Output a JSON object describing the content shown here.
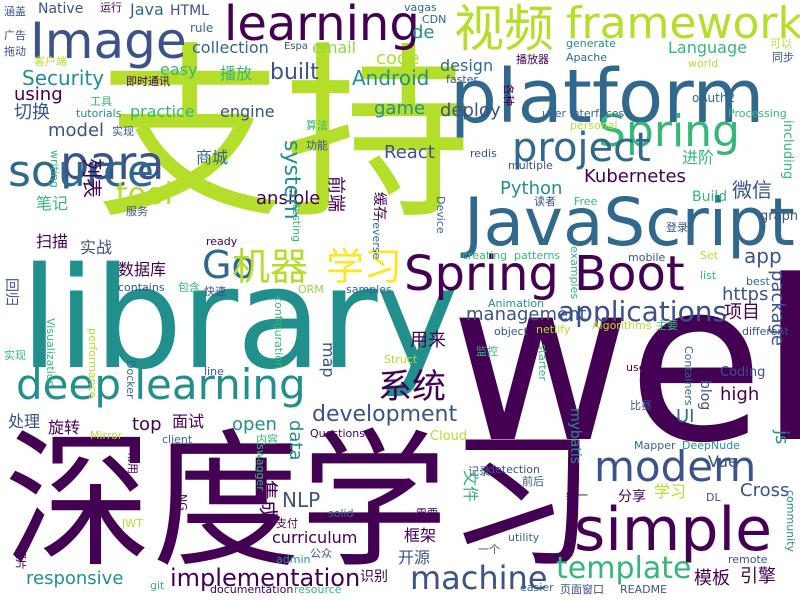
{
  "palette": {
    "deep-purple": "#440154",
    "indigo": "#3b528b",
    "blue": "#31688e",
    "teal": "#21908d",
    "green": "#35b779",
    "lime": "#90d743",
    "yellow-green": "#b5de2b",
    "yellow": "#fde725"
  },
  "words": [
    {
      "id": "zhichi",
      "text": "支持",
      "color": "#b5de2b"
    },
    {
      "id": "web",
      "text": "web",
      "color": "#440154"
    },
    {
      "id": "library",
      "text": "library",
      "color": "#21908d"
    },
    {
      "id": "shendu-xuexi-big",
      "text": "深度学习",
      "color": "#440154"
    },
    {
      "id": "platform",
      "text": "platform",
      "color": "#31688e"
    },
    {
      "id": "javascript",
      "text": "JavaScript",
      "color": "#31688e"
    },
    {
      "id": "spring-boot",
      "text": "Spring Boot",
      "color": "#440154"
    },
    {
      "id": "image",
      "text": "Image",
      "color": "#3b528b"
    },
    {
      "id": "learning-top",
      "text": "learning",
      "color": "#440154"
    },
    {
      "id": "framework",
      "text": "framework",
      "color": "#b5de2b"
    },
    {
      "id": "shipin",
      "text": "视频",
      "color": "#b5de2b"
    },
    {
      "id": "spring",
      "text": "Spring",
      "color": "#35b779"
    },
    {
      "id": "project",
      "text": "project",
      "color": "#31688e"
    },
    {
      "id": "para",
      "text": "para",
      "color": "#3b528b"
    },
    {
      "id": "source",
      "text": "source",
      "color": "#31688e"
    },
    {
      "id": "deep-learning",
      "text": "deep learning",
      "color": "#21908d"
    },
    {
      "id": "simple",
      "text": "simple",
      "color": "#440154"
    },
    {
      "id": "modern",
      "text": "modern",
      "color": "#3b528b"
    },
    {
      "id": "go",
      "text": "Go",
      "color": "#31688e"
    },
    {
      "id": "jiqi",
      "text": "机器",
      "color": "#b5de2b"
    },
    {
      "id": "xuexi",
      "text": "学习",
      "color": "#fde725"
    },
    {
      "id": "applications",
      "text": "applications",
      "color": "#3b528b"
    },
    {
      "id": "machine",
      "text": "machine",
      "color": "#3b528b"
    },
    {
      "id": "template",
      "text": "template",
      "color": "#35b779"
    },
    {
      "id": "implementation",
      "text": "implementation",
      "color": "#440154"
    },
    {
      "id": "development",
      "text": "development",
      "color": "#3b528b"
    },
    {
      "id": "xitong",
      "text": "系统",
      "color": "#440154"
    },
    {
      "id": "tool",
      "text": "tool",
      "color": "#b5de2b"
    },
    {
      "id": "kubernetes",
      "text": "Kubernetes",
      "color": "#440154"
    },
    {
      "id": "react",
      "text": "React",
      "color": "#3b528b"
    },
    {
      "id": "python",
      "text": "Python",
      "color": "#21908d"
    },
    {
      "id": "security",
      "text": "Security",
      "color": "#21908d"
    },
    {
      "id": "built",
      "text": "built",
      "color": "#3b528b"
    },
    {
      "id": "android",
      "text": "Android",
      "color": "#21908d"
    },
    {
      "id": "collection",
      "text": "collection",
      "color": "#31688e"
    },
    {
      "id": "easy",
      "text": "easy",
      "color": "#35b779"
    },
    {
      "id": "email",
      "text": "email",
      "color": "#90d743"
    },
    {
      "id": "code",
      "text": "code",
      "color": "#b5de2b"
    },
    {
      "id": "design",
      "text": "design",
      "color": "#31688e"
    },
    {
      "id": "language",
      "text": "Language",
      "color": "#35b779"
    },
    {
      "id": "de",
      "text": "de",
      "color": "#21908d"
    },
    {
      "id": "native",
      "text": "Native",
      "color": "#3b528b"
    },
    {
      "id": "java",
      "text": "Java",
      "color": "#31688e"
    },
    {
      "id": "html",
      "text": "HTML",
      "color": "#3b528b"
    },
    {
      "id": "rule",
      "text": "rule",
      "color": "#31688e"
    },
    {
      "id": "vagas",
      "text": "vagas",
      "color": "#31688e"
    },
    {
      "id": "cdn",
      "text": "CDN",
      "color": "#31688e"
    },
    {
      "id": "apache",
      "text": "Apache",
      "color": "#31688e"
    },
    {
      "id": "generate",
      "text": "generate",
      "color": "#21908d"
    },
    {
      "id": "oauth2",
      "text": "oAuth2",
      "color": "#31688e"
    },
    {
      "id": "processing",
      "text": "Processing",
      "color": "#35b779"
    },
    {
      "id": "including",
      "text": "including",
      "color": "#35b779"
    },
    {
      "id": "weixin",
      "text": "微信",
      "color": "#3b528b"
    },
    {
      "id": "jinjie",
      "text": "进阶",
      "color": "#35b779"
    },
    {
      "id": "build",
      "text": "Build",
      "color": "#35b779"
    },
    {
      "id": "graph",
      "text": "graph",
      "color": "#3b528b"
    },
    {
      "id": "https",
      "text": "https",
      "color": "#3b528b"
    },
    {
      "id": "app",
      "text": "app",
      "color": "#3b528b"
    },
    {
      "id": "xiangmu",
      "text": "项目",
      "color": "#440154"
    },
    {
      "id": "package",
      "text": "package",
      "color": "#3b528b"
    },
    {
      "id": "management",
      "text": "management",
      "color": "#3b528b"
    },
    {
      "id": "yonglai",
      "text": "用来",
      "color": "#440154"
    },
    {
      "id": "model",
      "text": "model",
      "color": "#3b528b"
    },
    {
      "id": "practice",
      "text": "practice",
      "color": "#35b779"
    },
    {
      "id": "engine",
      "text": "engine",
      "color": "#3b528b"
    },
    {
      "id": "using",
      "text": "using",
      "color": "#440154"
    },
    {
      "id": "qiehuan",
      "text": "切换",
      "color": "#3b528b"
    },
    {
      "id": "bofang",
      "text": "播放",
      "color": "#35b779"
    },
    {
      "id": "deploy",
      "text": "deploy",
      "color": "#3b528b"
    },
    {
      "id": "game",
      "text": "game",
      "color": "#21908d"
    },
    {
      "id": "system",
      "text": "system",
      "color": "#21908d"
    },
    {
      "id": "shangcheng",
      "text": "商城",
      "color": "#31688e"
    },
    {
      "id": "ansible",
      "text": "ansible",
      "color": "#440154"
    },
    {
      "id": "biji",
      "text": "笔记",
      "color": "#35b779"
    },
    {
      "id": "liebiao",
      "text": "列表",
      "color": "#440154"
    },
    {
      "id": "saomiao",
      "text": "扫描",
      "color": "#440154"
    },
    {
      "id": "shizhan",
      "text": "实战",
      "color": "#3b528b"
    },
    {
      "id": "shujuku",
      "text": "数据库",
      "color": "#440154"
    },
    {
      "id": "qianduan",
      "text": "前端",
      "color": "#440154"
    },
    {
      "id": "huancun",
      "text": "缓存",
      "color": "#440154"
    },
    {
      "id": "map",
      "text": "map",
      "color": "#3b528b"
    },
    {
      "id": "top",
      "text": "top",
      "color": "#440154"
    },
    {
      "id": "open",
      "text": "open",
      "color": "#21908d"
    },
    {
      "id": "data",
      "text": "data",
      "color": "#21908d"
    },
    {
      "id": "mianshi",
      "text": "面试",
      "color": "#440154"
    },
    {
      "id": "chuli",
      "text": "处理",
      "color": "#3b528b"
    },
    {
      "id": "xuanzhuan",
      "text": "旋转",
      "color": "#440154"
    },
    {
      "id": "high",
      "text": "high",
      "color": "#440154"
    },
    {
      "id": "ui",
      "text": "UI",
      "color": "#31688e"
    },
    {
      "id": "js",
      "text": "js",
      "color": "#21908d"
    },
    {
      "id": "vue",
      "text": "Vue",
      "color": "#3b528b"
    },
    {
      "id": "cross",
      "text": "Cross",
      "color": "#3b528b"
    },
    {
      "id": "blog",
      "text": "blog",
      "color": "#3b528b"
    },
    {
      "id": "coding",
      "text": "Coding",
      "color": "#3b528b"
    },
    {
      "id": "nlp",
      "text": "NLP",
      "color": "#3b528b"
    },
    {
      "id": "curriculum",
      "text": "curriculum",
      "color": "#440154"
    },
    {
      "id": "jicheng",
      "text": "集成",
      "color": "#440154"
    },
    {
      "id": "kuangjia",
      "text": "框架",
      "color": "#440154"
    },
    {
      "id": "kaiyuan",
      "text": "开源",
      "color": "#3b528b"
    },
    {
      "id": "shibie",
      "text": "识别",
      "color": "#440154"
    },
    {
      "id": "responsive",
      "text": "responsive",
      "color": "#21908d"
    },
    {
      "id": "moban",
      "text": "模板",
      "color": "#440154"
    },
    {
      "id": "yinqing",
      "text": "引擎",
      "color": "#440154"
    },
    {
      "id": "fenxiang",
      "text": "分享",
      "color": "#440154"
    },
    {
      "id": "xuexi-small",
      "text": "学习",
      "color": "#b5de2b"
    },
    {
      "id": "mybatis",
      "text": "mybatis",
      "color": "#21908d"
    },
    {
      "id": "wenjian",
      "text": "文件",
      "color": "#35b779"
    },
    {
      "id": "mapper",
      "text": "Mapper",
      "color": "#31688e"
    },
    {
      "id": "deepnude",
      "text": "DeepNude",
      "color": "#21908d"
    },
    {
      "id": "dl",
      "text": "DL",
      "color": "#3b528b"
    },
    {
      "id": "community",
      "text": "community",
      "color": "#21908d"
    },
    {
      "id": "remote",
      "text": "remote",
      "color": "#3b528b"
    },
    {
      "id": "readme",
      "text": "README",
      "color": "#3b528b"
    },
    {
      "id": "yemian-chuangkou",
      "text": "页面窗口",
      "color": "#3b528b"
    },
    {
      "id": "easier",
      "text": "easier",
      "color": "#31688e"
    },
    {
      "id": "yige",
      "text": "一个",
      "color": "#3b528b"
    },
    {
      "id": "utility",
      "text": "utility",
      "color": "#31688e"
    },
    {
      "id": "tongyi",
      "text": "统一",
      "color": "#440154"
    },
    {
      "id": "qianhou",
      "text": "前后",
      "color": "#3b528b"
    },
    {
      "id": "detection",
      "text": "detection",
      "color": "#3b528b"
    },
    {
      "id": "jilu",
      "text": "记录",
      "color": "#3b528b"
    },
    {
      "id": "xuyao",
      "text": "需要",
      "color": "#440154"
    },
    {
      "id": "solid",
      "text": "solid",
      "color": "#31688e"
    },
    {
      "id": "cloud",
      "text": "Cloud",
      "color": "#b5de2b"
    },
    {
      "id": "questions",
      "text": "Questions",
      "color": "#440154"
    },
    {
      "id": "neirong",
      "text": "内容",
      "color": "#35b779"
    },
    {
      "id": "client",
      "text": "client",
      "color": "#31688e"
    },
    {
      "id": "mirror",
      "text": "Mirror",
      "color": "#b5de2b"
    },
    {
      "id": "changyong",
      "text": "常用",
      "color": "#440154"
    },
    {
      "id": "swagger",
      "text": "swagger",
      "color": "#35b779"
    },
    {
      "id": "ng",
      "text": "NG",
      "color": "#440154"
    },
    {
      "id": "zhifu",
      "text": "支付",
      "color": "#440154"
    },
    {
      "id": "gongzhong",
      "text": "公众",
      "color": "#3b528b"
    },
    {
      "id": "admin",
      "text": "admin",
      "color": "#21908d"
    },
    {
      "id": "documentation",
      "text": "documentation",
      "color": "#440154"
    },
    {
      "id": "resource",
      "text": "resource",
      "color": "#35b779"
    },
    {
      "id": "git",
      "text": "git",
      "color": "#35b779"
    },
    {
      "id": "tupian",
      "text": "图片",
      "color": "#440154"
    },
    {
      "id": "jwt",
      "text": "JWT",
      "color": "#b5de2b"
    },
    {
      "id": "bisai",
      "text": "比赛",
      "color": "#3b528b"
    },
    {
      "id": "use",
      "text": "use",
      "color": "#440154"
    },
    {
      "id": "containers",
      "text": "Containers",
      "color": "#31688e"
    },
    {
      "id": "different",
      "text": "different",
      "color": "#3b528b"
    },
    {
      "id": "algorithms",
      "text": "Algorithms",
      "color": "#b5de2b"
    },
    {
      "id": "zhuyao",
      "text": "主要",
      "color": "#35b779"
    },
    {
      "id": "best",
      "text": "best",
      "color": "#31688e"
    },
    {
      "id": "list",
      "text": "list",
      "color": "#35b779"
    },
    {
      "id": "set",
      "text": "Set",
      "color": "#b5de2b"
    },
    {
      "id": "mobile",
      "text": "mobile",
      "color": "#3b528b"
    },
    {
      "id": "patterns",
      "text": "patterns",
      "color": "#35b779"
    },
    {
      "id": "creating",
      "text": "creating",
      "color": "#35b779"
    },
    {
      "id": "examples",
      "text": "examples",
      "color": "#35b779"
    },
    {
      "id": "animation",
      "text": "Animation",
      "color": "#21908d"
    },
    {
      "id": "object",
      "text": "object",
      "color": "#3b528b"
    },
    {
      "id": "netlify",
      "text": "netlify",
      "color": "#b5de2b"
    },
    {
      "id": "starter",
      "text": "starter",
      "color": "#35b779"
    },
    {
      "id": "jiankong",
      "text": "监控",
      "color": "#35b779"
    },
    {
      "id": "struct",
      "text": "Struct",
      "color": "#b5de2b"
    },
    {
      "id": "samples",
      "text": "samples",
      "color": "#31688e"
    },
    {
      "id": "orm",
      "text": "ORM",
      "color": "#90d743"
    },
    {
      "id": "contains",
      "text": "contains",
      "color": "#3b528b"
    },
    {
      "id": "baohan",
      "text": "包含",
      "color": "#35b779"
    },
    {
      "id": "kuaisu",
      "text": "快速",
      "color": "#3b528b"
    },
    {
      "id": "configuration",
      "text": "configuration",
      "color": "#35b779"
    },
    {
      "id": "performance",
      "text": "performance",
      "color": "#b5de2b"
    },
    {
      "id": "visualization",
      "text": "Visualization",
      "color": "#35b779"
    },
    {
      "id": "line",
      "text": "line",
      "color": "#3b528b"
    },
    {
      "id": "docker",
      "text": "Docker",
      "color": "#31688e"
    },
    {
      "id": "shixian-left",
      "text": "实现",
      "color": "#35b779"
    },
    {
      "id": "huigui",
      "text": "回归",
      "color": "#3b528b"
    },
    {
      "id": "reverse",
      "text": "reverse",
      "color": "#31688e"
    },
    {
      "id": "ready",
      "text": "ready",
      "color": "#440154"
    },
    {
      "id": "device",
      "text": "Device",
      "color": "#31688e"
    },
    {
      "id": "duzhe",
      "text": "读者",
      "color": "#3b528b"
    },
    {
      "id": "free",
      "text": "Free",
      "color": "#35b779"
    },
    {
      "id": "denglu",
      "text": "登录",
      "color": "#3b528b"
    },
    {
      "id": "testing",
      "text": "testing",
      "color": "#35b779"
    },
    {
      "id": "fuwu",
      "text": "服务",
      "color": "#3b528b"
    },
    {
      "id": "writing",
      "text": "writing",
      "color": "#35b779"
    },
    {
      "id": "redis",
      "text": "redis",
      "color": "#3b528b"
    },
    {
      "id": "multiple",
      "text": "multiple",
      "color": "#3b528b"
    },
    {
      "id": "gongneng",
      "text": "功能",
      "color": "#3b528b"
    },
    {
      "id": "suanfa",
      "text": "算法",
      "color": "#35b779"
    },
    {
      "id": "personal",
      "text": "personal",
      "color": "#b5de2b"
    },
    {
      "id": "user-interfaces",
      "text": "user interfaces",
      "color": "#31688e"
    },
    {
      "id": "shixian",
      "text": "实现",
      "color": "#3b528b"
    },
    {
      "id": "gongju",
      "text": "工具",
      "color": "#35b779"
    },
    {
      "id": "tutorials",
      "text": "tutorials",
      "color": "#21908d"
    },
    {
      "id": "jishi-tongxun",
      "text": "即时通讯",
      "color": "#440154"
    },
    {
      "id": "tuodong",
      "text": "拖动",
      "color": "#3b528b"
    },
    {
      "id": "kehuduan",
      "text": "客户端",
      "color": "#b5de2b"
    },
    {
      "id": "guanggao",
      "text": "广告",
      "color": "#3b528b"
    },
    {
      "id": "hangai",
      "text": "涵盖",
      "color": "#3b528b"
    },
    {
      "id": "yunxing",
      "text": "运行",
      "color": "#440154"
    },
    {
      "id": "espa",
      "text": "Espa",
      "color": "#3b528b"
    },
    {
      "id": "faster",
      "text": "faster",
      "color": "#3b528b"
    },
    {
      "id": "gezhong",
      "text": "各种",
      "color": "#440154"
    },
    {
      "id": "bofangqi",
      "text": "播放器",
      "color": "#440154"
    },
    {
      "id": "world",
      "text": "world",
      "color": "#b5de2b"
    },
    {
      "id": "keyi",
      "text": "可以",
      "color": "#b5de2b"
    },
    {
      "id": "tongbu",
      "text": "同步",
      "color": "#3b528b"
    }
  ]
}
